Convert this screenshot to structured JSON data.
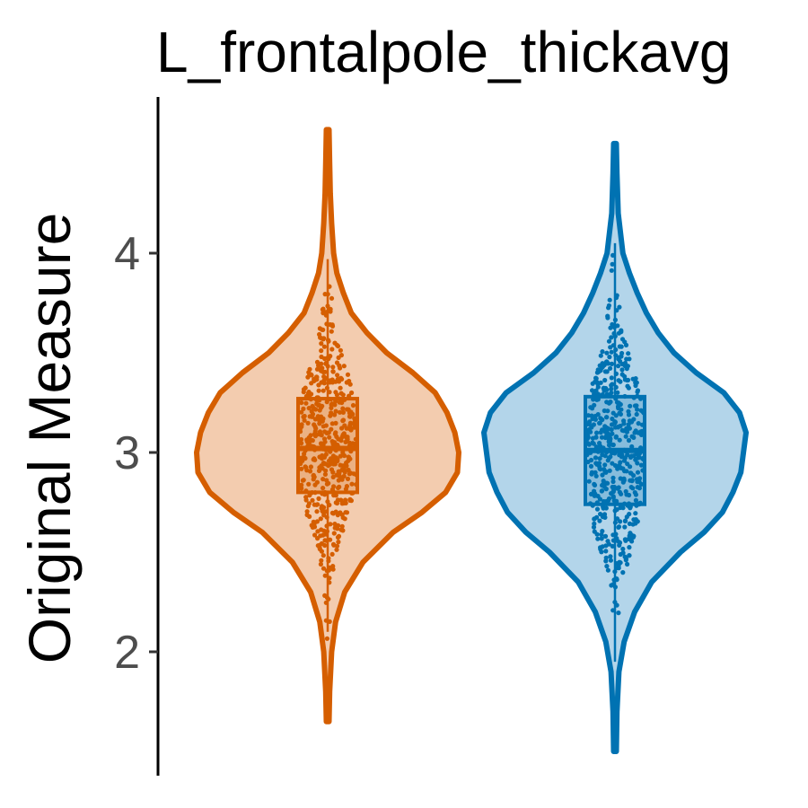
{
  "chart_data": {
    "type": "violin",
    "title": "L_frontalpole_thickavg",
    "xlabel": "",
    "ylabel": "Original Measure",
    "ylim": [
      1.4,
      4.8
    ],
    "yticks": [
      2,
      3,
      4
    ],
    "ytick_labels": [
      "2",
      "3",
      "4"
    ],
    "grid": false,
    "legend": "none",
    "groups": [
      {
        "color": "#D55E00",
        "fill": "#F3CCAF",
        "range": [
          1.65,
          4.62
        ],
        "box": {
          "q1": 2.8,
          "median": 3.02,
          "q3": 3.27,
          "whisker_low": 2.1,
          "whisker_high": 3.97
        },
        "density": [
          [
            1.65,
            0.01
          ],
          [
            1.8,
            0.015
          ],
          [
            2.0,
            0.03
          ],
          [
            2.15,
            0.06
          ],
          [
            2.3,
            0.13
          ],
          [
            2.45,
            0.27
          ],
          [
            2.6,
            0.5
          ],
          [
            2.7,
            0.72
          ],
          [
            2.8,
            0.9
          ],
          [
            2.9,
            0.99
          ],
          [
            3.0,
            1.0
          ],
          [
            3.1,
            0.97
          ],
          [
            3.2,
            0.91
          ],
          [
            3.3,
            0.82
          ],
          [
            3.4,
            0.65
          ],
          [
            3.5,
            0.45
          ],
          [
            3.6,
            0.3
          ],
          [
            3.7,
            0.18
          ],
          [
            3.8,
            0.12
          ],
          [
            3.9,
            0.07
          ],
          [
            4.0,
            0.045
          ],
          [
            4.15,
            0.03
          ],
          [
            4.3,
            0.02
          ],
          [
            4.45,
            0.015
          ],
          [
            4.62,
            0.01
          ]
        ]
      },
      {
        "color": "#0072B2",
        "fill": "#B3D5EA",
        "range": [
          1.5,
          4.55
        ],
        "box": {
          "q1": 2.74,
          "median": 3.01,
          "q3": 3.28,
          "whisker_low": 1.95,
          "whisker_high": 4.05
        },
        "density": [
          [
            1.5,
            0.01
          ],
          [
            1.7,
            0.015
          ],
          [
            1.9,
            0.03
          ],
          [
            2.05,
            0.07
          ],
          [
            2.2,
            0.15
          ],
          [
            2.35,
            0.28
          ],
          [
            2.5,
            0.5
          ],
          [
            2.6,
            0.68
          ],
          [
            2.7,
            0.82
          ],
          [
            2.8,
            0.9
          ],
          [
            2.9,
            0.96
          ],
          [
            3.0,
            0.98
          ],
          [
            3.1,
            1.0
          ],
          [
            3.2,
            0.95
          ],
          [
            3.3,
            0.83
          ],
          [
            3.4,
            0.62
          ],
          [
            3.5,
            0.45
          ],
          [
            3.6,
            0.33
          ],
          [
            3.7,
            0.24
          ],
          [
            3.8,
            0.17
          ],
          [
            3.9,
            0.11
          ],
          [
            4.0,
            0.06
          ],
          [
            4.2,
            0.025
          ],
          [
            4.4,
            0.015
          ],
          [
            4.55,
            0.01
          ]
        ]
      }
    ]
  }
}
